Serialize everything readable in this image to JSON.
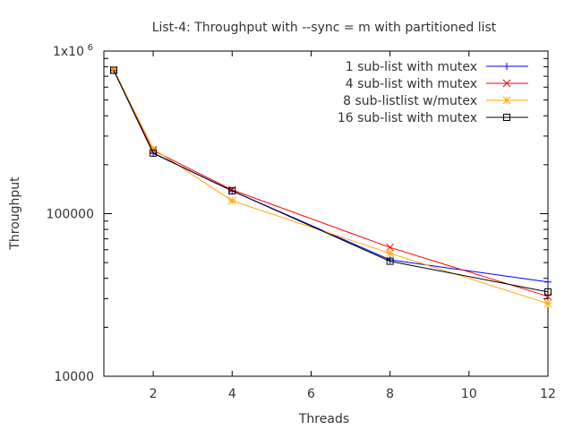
{
  "chart_data": {
    "type": "line",
    "title": "List-4: Throughput with --sync = m with partitioned list",
    "xlabel": "Threads",
    "ylabel": "Throughput",
    "xlim": [
      0.75,
      12
    ],
    "ylim": [
      10000,
      1000000
    ],
    "yscale": "log",
    "grid": false,
    "legend_position": "top-right",
    "xticks": [
      2,
      4,
      6,
      8,
      10,
      12
    ],
    "xtick_labels": [
      "2",
      "4",
      "6",
      "8",
      "10",
      "12"
    ],
    "yticks": [
      10000,
      100000,
      1000000
    ],
    "ytick_labels": [
      "10000",
      "100000",
      "1x10"
    ],
    "ytick_top_exp": "6",
    "x": [
      1,
      2,
      4,
      8,
      12
    ],
    "series": [
      {
        "name": "1 sub-list with mutex",
        "color": "#0000ff",
        "marker": "plus",
        "values": [
          760000,
          235000,
          138000,
          52000,
          38000
        ]
      },
      {
        "name": "4 sub-list with mutex",
        "color": "#ff0000",
        "marker": "cross",
        "values": [
          765000,
          245000,
          140000,
          62000,
          31000
        ]
      },
      {
        "name": "8 sub-listlist w/mutex",
        "color": "#ffa500",
        "marker": "star",
        "values": [
          770000,
          250000,
          120000,
          57000,
          28000
        ]
      },
      {
        "name": "16 sub-list with mutex",
        "color": "#000000",
        "marker": "square",
        "values": [
          762000,
          236000,
          138000,
          51000,
          33000
        ]
      }
    ]
  }
}
